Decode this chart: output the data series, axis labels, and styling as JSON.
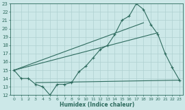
{
  "line1_x": [
    0,
    1,
    2,
    3,
    4,
    5,
    6,
    7,
    8,
    9,
    10,
    11,
    12,
    13,
    14,
    15,
    16,
    17,
    18,
    19,
    20,
    21,
    22,
    23
  ],
  "line1_y": [
    15,
    14,
    14,
    13.3,
    13,
    12,
    13.3,
    13.3,
    13.5,
    14.8,
    15.5,
    16.5,
    17.5,
    18,
    19.3,
    21,
    21.5,
    23,
    22.3,
    20.5,
    19.3,
    17,
    15.3,
    13.8
  ],
  "line2_x": [
    0,
    20
  ],
  "line2_y": [
    15,
    19.5
  ],
  "line3_x": [
    0,
    18
  ],
  "line3_y": [
    15,
    20.7
  ],
  "line4_x": [
    3,
    23
  ],
  "line4_y": [
    13.5,
    13.8
  ],
  "color": "#2e6b5e",
  "bg_color": "#cce8e8",
  "grid_color": "#aed0d0",
  "xlabel": "Humidex (Indice chaleur)",
  "ylim": [
    12,
    23
  ],
  "xlim": [
    -0.5,
    23.5
  ],
  "yticks": [
    12,
    13,
    14,
    15,
    16,
    17,
    18,
    19,
    20,
    21,
    22,
    23
  ],
  "xticks": [
    0,
    1,
    2,
    3,
    4,
    5,
    6,
    7,
    8,
    9,
    10,
    11,
    12,
    13,
    14,
    15,
    16,
    17,
    18,
    19,
    20,
    21,
    22,
    23
  ],
  "xtick_labels": [
    "0",
    "1",
    "2",
    "3",
    "4",
    "5",
    "6",
    "7",
    "8",
    "9",
    "10",
    "11",
    "12",
    "13",
    "14",
    "15",
    "16",
    "17",
    "18",
    "19",
    "20",
    "21",
    "22",
    "23"
  ],
  "marker": "+",
  "marker_size": 3,
  "linewidth": 0.8,
  "title_fontsize": 6,
  "xlabel_fontsize": 5.5,
  "tick_fontsize": 4.5
}
